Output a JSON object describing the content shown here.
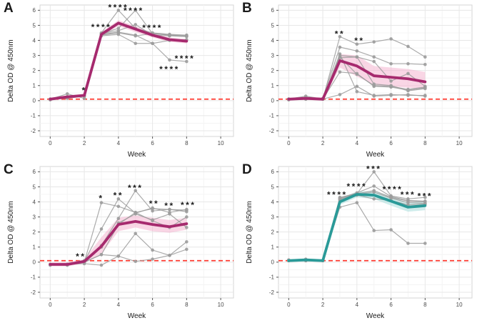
{
  "figure": {
    "y_axis_title": "Delta OD @ 450nm",
    "x_axis_title": "Week",
    "colors": {
      "magenta_line": "#a62a6e",
      "pink_ribbon": "#f4b4d0",
      "teal_line": "#2a9a98",
      "teal_ribbon": "#a9dedc",
      "gray_series": "#9c9c9c",
      "baseline_red": "#ff3b30",
      "grid_major": "#e7e7e7",
      "grid_minor": "#f4f4f4",
      "panel_border": "#d4d4d4",
      "tick_text": "#4a4a4a",
      "annotation_text": "#1a1a1a"
    }
  },
  "chart_data": [
    {
      "type": "line",
      "label": "A",
      "xlabel": "Week",
      "ylabel": "Delta OD @ 450nm",
      "xlim": [
        0,
        10
      ],
      "ylim": [
        -2,
        6
      ],
      "x_ticks": [
        0,
        2,
        4,
        6,
        8,
        10
      ],
      "y_ticks": [
        -2,
        -1,
        0,
        1,
        2,
        3,
        4,
        5,
        6
      ],
      "weeks": [
        0,
        1,
        2,
        3,
        4,
        5,
        6,
        7,
        8
      ],
      "mean": [
        0.1,
        0.25,
        0.35,
        4.4,
        5.15,
        4.75,
        4.35,
        4.05,
        3.95
      ],
      "ribbon_upper": [
        0.18,
        0.33,
        0.45,
        4.55,
        5.35,
        4.95,
        4.5,
        4.2,
        4.1
      ],
      "ribbon_lower": [
        0.02,
        0.17,
        0.25,
        4.25,
        4.95,
        4.55,
        4.2,
        3.9,
        3.8
      ],
      "individuals": [
        [
          0.1,
          0.2,
          0.35,
          4.5,
          6.0,
          4.8,
          4.5,
          4.4,
          4.35
        ],
        [
          0.1,
          0.25,
          0.3,
          4.45,
          4.8,
          6.0,
          4.45,
          4.35,
          4.3
        ],
        [
          0.1,
          0.45,
          0.15,
          4.45,
          4.65,
          5.05,
          4.35,
          4.3,
          4.25
        ],
        [
          0.05,
          0.2,
          0.3,
          4.4,
          4.55,
          4.35,
          3.8,
          2.7,
          2.6
        ],
        [
          0.1,
          0.2,
          0.35,
          4.35,
          4.5,
          4.3,
          4.45,
          4.35,
          4.3
        ],
        [
          0.1,
          0.15,
          0.3,
          4.3,
          4.4,
          3.8,
          3.8,
          4.0,
          4.05
        ]
      ],
      "significance": [
        {
          "week": 2,
          "y": 0.8,
          "label": "*"
        },
        {
          "week": 3,
          "y": 5.0,
          "label": "****"
        },
        {
          "week": 4,
          "y": 6.3,
          "label": "****"
        },
        {
          "week": 4.9,
          "y": 6.1,
          "label": "****"
        },
        {
          "week": 6,
          "y": 4.95,
          "label": "****"
        },
        {
          "week": 7,
          "y": 2.2,
          "label": "****"
        },
        {
          "week": 7.9,
          "y": 2.9,
          "label": "****"
        }
      ],
      "baseline": {
        "y": 0.1,
        "color": "#ff3b30",
        "style": "dashed"
      },
      "line_color": "#a62a6e",
      "ribbon_color": "#f4b4d0"
    },
    {
      "type": "line",
      "label": "B",
      "xlabel": "Week",
      "ylabel": "Delta OD @ 450nm",
      "xlim": [
        0,
        10
      ],
      "ylim": [
        -2,
        6
      ],
      "x_ticks": [
        0,
        2,
        4,
        6,
        8,
        10
      ],
      "y_ticks": [
        -2,
        -1,
        0,
        1,
        2,
        3,
        4,
        5,
        6
      ],
      "weeks": [
        0,
        1,
        2,
        3,
        4,
        5,
        6,
        7,
        8
      ],
      "mean": [
        0.1,
        0.15,
        0.1,
        2.65,
        2.3,
        1.65,
        1.55,
        1.45,
        1.25
      ],
      "ribbon_upper": [
        0.18,
        0.28,
        0.2,
        3.1,
        3.0,
        2.3,
        2.2,
        2.1,
        1.9
      ],
      "ribbon_lower": [
        0.02,
        0.05,
        0.0,
        2.2,
        1.6,
        1.05,
        0.95,
        0.85,
        0.8
      ],
      "individuals": [
        [
          0.1,
          0.3,
          0.1,
          4.25,
          3.75,
          3.9,
          4.1,
          3.6,
          2.9
        ],
        [
          0.1,
          0.2,
          0.15,
          3.55,
          3.3,
          2.9,
          2.45,
          2.45,
          2.4
        ],
        [
          0.1,
          0.2,
          0.1,
          3.0,
          2.9,
          2.6,
          1.3,
          1.8,
          0.95
        ],
        [
          0.1,
          0.15,
          0.1,
          2.9,
          1.75,
          1.0,
          0.95,
          0.75,
          0.9
        ],
        [
          0.05,
          0.1,
          0.1,
          1.9,
          1.8,
          0.95,
          0.9,
          0.7,
          0.85
        ],
        [
          0.1,
          0.15,
          0.1,
          0.4,
          0.95,
          0.3,
          0.35,
          0.4,
          0.3
        ],
        [
          0.1,
          0.1,
          0.1,
          3.1,
          0.6,
          0.35,
          0.4,
          0.35,
          0.35
        ],
        [
          0.1,
          0.2,
          0.1,
          2.85,
          2.9,
          1.1,
          1.0,
          0.65,
          0.8
        ]
      ],
      "significance": [
        {
          "week": 3,
          "y": 4.55,
          "label": "**"
        },
        {
          "week": 4.15,
          "y": 4.1,
          "label": "**"
        }
      ],
      "baseline": {
        "y": 0.1,
        "color": "#ff3b30",
        "style": "dashed"
      },
      "line_color": "#a62a6e",
      "ribbon_color": "#f4b4d0"
    },
    {
      "type": "line",
      "label": "C",
      "xlabel": "Week",
      "ylabel": "Delta OD @ 450nm",
      "xlim": [
        0,
        10
      ],
      "ylim": [
        -2,
        6
      ],
      "x_ticks": [
        0,
        2,
        4,
        6,
        8,
        10
      ],
      "y_ticks": [
        -2,
        -1,
        0,
        1,
        2,
        3,
        4,
        5,
        6
      ],
      "weeks": [
        0,
        1,
        2,
        3,
        4,
        5,
        6,
        7,
        8
      ],
      "mean": [
        -0.15,
        -0.15,
        0.05,
        1.05,
        2.5,
        2.7,
        2.5,
        2.35,
        2.55
      ],
      "ribbon_upper": [
        -0.02,
        -0.02,
        0.18,
        1.65,
        2.95,
        3.1,
        2.95,
        2.8,
        2.95
      ],
      "ribbon_lower": [
        -0.28,
        -0.28,
        -0.08,
        0.55,
        2.05,
        2.3,
        2.05,
        1.95,
        2.15
      ],
      "individuals": [
        [
          -0.15,
          -0.2,
          0.0,
          3.95,
          3.7,
          3.3,
          3.55,
          3.5,
          3.45
        ],
        [
          -0.15,
          -0.15,
          0.05,
          2.2,
          4.2,
          3.25,
          3.6,
          3.3,
          3.5
        ],
        [
          -0.2,
          -0.15,
          0.1,
          1.1,
          2.9,
          4.75,
          3.4,
          3.5,
          3.35
        ],
        [
          -0.15,
          -0.15,
          0.0,
          0.5,
          2.5,
          3.3,
          2.75,
          2.3,
          3.0
        ],
        [
          -0.15,
          -0.15,
          -0.1,
          -0.2,
          0.4,
          1.9,
          0.8,
          0.45,
          1.35
        ],
        [
          -0.15,
          -0.15,
          0.0,
          0.5,
          0.4,
          0.05,
          0.2,
          0.45,
          0.85
        ],
        [
          -0.2,
          -0.2,
          0.05,
          1.0,
          2.6,
          3.2,
          2.8,
          3.2,
          2.3
        ]
      ],
      "significance": [
        {
          "week": 1.8,
          "y": 0.5,
          "label": "**"
        },
        {
          "week": 3,
          "y": 4.35,
          "label": "*"
        },
        {
          "week": 4,
          "y": 4.55,
          "label": "**"
        },
        {
          "week": 5,
          "y": 5.05,
          "label": "***"
        },
        {
          "week": 6.1,
          "y": 4.0,
          "label": "**"
        },
        {
          "week": 7,
          "y": 3.85,
          "label": "**"
        },
        {
          "week": 8.1,
          "y": 3.9,
          "label": "***"
        }
      ],
      "baseline": {
        "y": 0.1,
        "color": "#ff3b30",
        "style": "dashed"
      },
      "line_color": "#a62a6e",
      "ribbon_color": "#f4b4d0"
    },
    {
      "type": "line",
      "label": "D",
      "xlabel": "Week",
      "ylabel": "Delta OD @ 450nm",
      "xlim": [
        0,
        10
      ],
      "ylim": [
        -2,
        6
      ],
      "x_ticks": [
        0,
        2,
        4,
        6,
        8,
        10
      ],
      "y_ticks": [
        -2,
        -1,
        0,
        1,
        2,
        3,
        4,
        5,
        6
      ],
      "weeks": [
        0,
        1,
        2,
        3,
        4,
        5,
        6,
        7,
        8
      ],
      "mean": [
        0.1,
        0.15,
        0.1,
        4.0,
        4.5,
        4.45,
        4.05,
        3.65,
        3.75
      ],
      "ribbon_upper": [
        0.18,
        0.25,
        0.18,
        4.2,
        4.7,
        4.7,
        4.35,
        3.95,
        4.05
      ],
      "ribbon_lower": [
        0.02,
        0.05,
        0.02,
        3.8,
        4.3,
        4.2,
        3.75,
        3.35,
        3.45
      ],
      "individuals": [
        [
          0.15,
          0.2,
          0.1,
          4.3,
          4.55,
          6.0,
          4.4,
          4.2,
          4.3
        ],
        [
          0.1,
          0.15,
          0.1,
          4.25,
          4.6,
          5.05,
          4.35,
          4.1,
          4.05
        ],
        [
          0.1,
          0.15,
          0.1,
          4.2,
          4.55,
          4.75,
          4.3,
          4.05,
          4.0
        ],
        [
          0.1,
          0.1,
          0.1,
          4.15,
          4.5,
          4.65,
          4.25,
          3.95,
          3.9
        ],
        [
          0.1,
          0.1,
          0.1,
          3.65,
          3.95,
          2.1,
          2.15,
          1.25,
          1.25
        ],
        [
          0.1,
          0.15,
          0.1,
          4.1,
          4.45,
          4.2,
          4.1,
          3.8,
          3.85
        ]
      ],
      "significance": [
        {
          "week": 2.85,
          "y": 4.6,
          "label": "****"
        },
        {
          "week": 4,
          "y": 5.15,
          "label": "****"
        },
        {
          "week": 5,
          "y": 6.3,
          "label": "***"
        },
        {
          "week": 6.1,
          "y": 4.95,
          "label": "****"
        },
        {
          "week": 7,
          "y": 4.6,
          "label": "***"
        },
        {
          "week": 8,
          "y": 4.5,
          "label": "***"
        }
      ],
      "baseline": {
        "y": 0.1,
        "color": "#ff3b30",
        "style": "dashed"
      },
      "line_color": "#2a9a98",
      "ribbon_color": "#a9dedc"
    }
  ]
}
